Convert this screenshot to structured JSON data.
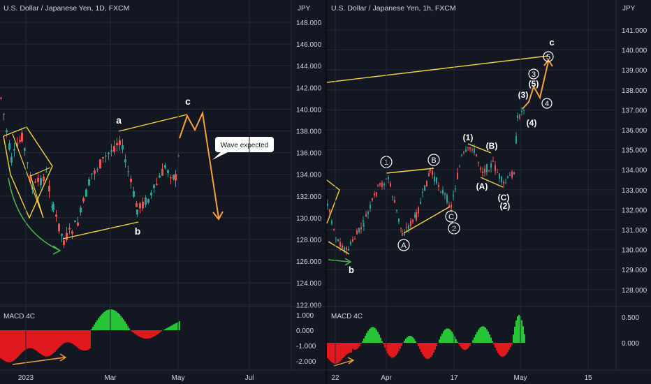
{
  "colors": {
    "bg": "#131722",
    "text": "#d1d4dc",
    "grid": "#262a35",
    "up": "#26a69a",
    "upbar": "#089981",
    "down": "#ef5350",
    "yellow": "#f5d442",
    "orange": "#f7a13b",
    "green": "#4caf50",
    "histUp": "#26c436",
    "histDown": "#e0191e"
  },
  "left": {
    "title": "U.S. Dollar / Japanese Yen, 1D, FXCM",
    "axis_label": "JPY",
    "ticks": [
      "148.000",
      "146.000",
      "144.000",
      "142.000",
      "140.000",
      "138.000",
      "136.000",
      "134.000",
      "132.000",
      "130.000",
      "128.000",
      "126.000",
      "124.000",
      "122.000"
    ],
    "x_ticks": [
      "2023",
      "Mar",
      "May",
      "Jul"
    ],
    "macd_title": "MACD 4C",
    "macd_ticks": [
      "1.000",
      "0.000",
      "-1.000",
      "-2.000"
    ],
    "labels": {
      "a": "a",
      "b": "b",
      "c": "c"
    },
    "callout": "Wave expected"
  },
  "right": {
    "title": "U.S. Dollar / Japanese Yen, 1h, FXCM",
    "axis_label": "JPY",
    "ticks": [
      "141.000",
      "140.000",
      "139.000",
      "138.000",
      "137.000",
      "136.000",
      "135.000",
      "134.000",
      "133.000",
      "132.000",
      "131.000",
      "130.000",
      "129.000",
      "128.000"
    ],
    "x_ticks": [
      "22",
      "Apr",
      "17",
      "May",
      "15"
    ],
    "macd_title": "MACD 4C",
    "macd_ticks": [
      "0.500",
      "0.000"
    ],
    "labels": {
      "b": "b",
      "c": "c",
      "A": "A",
      "B": "B",
      "C": "C",
      "n1": "1",
      "n2": "2",
      "n3": "3",
      "n5": "5",
      "p1": "(1)",
      "p3": "(3)",
      "p4": "(4)",
      "p5": "(5)",
      "pA": "(A)",
      "pB": "(B)",
      "pC": "(C)",
      "p2": "(2)",
      "c4": "4"
    }
  },
  "chart_data": [
    {
      "type": "candlestick",
      "title": "U.S. Dollar / Japanese Yen, 1D, FXCM",
      "ylabel": "JPY",
      "ylim": [
        121.5,
        149.5
      ],
      "x_ticks": [
        "2023",
        "Mar",
        "May",
        "Jul"
      ],
      "wave_labels": {
        "a": 137.9,
        "b": 129.6,
        "c": 139.4
      },
      "annotation": "Wave expected"
    },
    {
      "type": "candlestick",
      "title": "U.S. Dollar / Japanese Yen, 1h, FXCM",
      "ylabel": "JPY",
      "ylim": [
        127.6,
        141.6
      ],
      "x_ticks": [
        "22",
        "Apr",
        "17",
        "May",
        "15"
      ],
      "wave_labels": {
        "b": 129.9,
        "A": 130.7,
        "B": 134.0,
        "C": 132.0,
        "(A)": 133.3,
        "(B)": 134.8,
        "(C)": 133.0,
        "(3)": 137.9,
        "(5)": 139.0,
        "c": 139.6
      }
    }
  ]
}
